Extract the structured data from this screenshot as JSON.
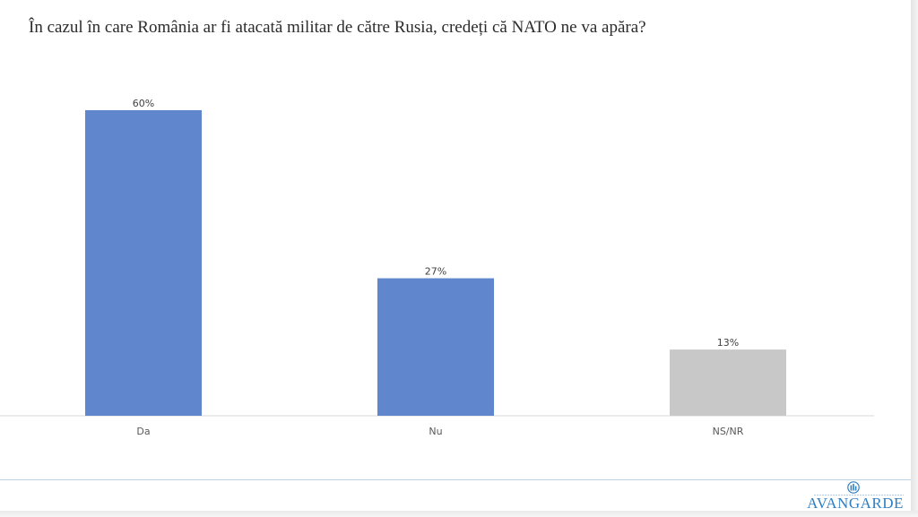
{
  "title": "În cazul în care România ar fi atacată militar de către Rusia, credeți că NATO ne va apăra?",
  "brand": {
    "name": "AVANGARDE",
    "color": "#2f7fc1",
    "mark_icon": "avangarde-logo-icon"
  },
  "colors": {
    "primary_bar": "#6086cd",
    "neutral_bar": "#c8c8c8",
    "axis": "#d9d9d9"
  },
  "chart_data": {
    "type": "bar",
    "title": "În cazul în care România ar fi atacată militar de către Rusia, credeți că NATO ne va apăra?",
    "categories": [
      "Da",
      "Nu",
      "NS/NR"
    ],
    "values": [
      60,
      27,
      13
    ],
    "data_labels": [
      "60%",
      "27%",
      "13%"
    ],
    "bar_colors": [
      "#6086cd",
      "#6086cd",
      "#c8c8c8"
    ],
    "unit": "%",
    "ylim": [
      0,
      60
    ],
    "grid": false,
    "legend": "none",
    "xlabel": "",
    "ylabel": ""
  }
}
